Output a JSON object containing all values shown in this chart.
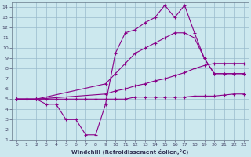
{
  "xlabel": "Windchill (Refroidissement éolien,°C)",
  "background_color": "#cce8ee",
  "line_color": "#880088",
  "grid_color": "#99bbcc",
  "xlim": [
    -0.5,
    23.5
  ],
  "ylim": [
    1,
    14.5
  ],
  "xticks": [
    0,
    1,
    2,
    3,
    4,
    5,
    6,
    7,
    8,
    9,
    10,
    11,
    12,
    13,
    14,
    15,
    16,
    17,
    18,
    19,
    20,
    21,
    22,
    23
  ],
  "yticks": [
    1,
    2,
    3,
    4,
    5,
    6,
    7,
    8,
    9,
    10,
    11,
    12,
    13,
    14
  ],
  "line1_x": [
    0,
    1,
    2,
    3,
    4,
    5,
    6,
    7,
    8,
    9,
    10,
    11,
    12,
    13,
    14,
    15,
    16,
    17,
    18,
    19,
    20,
    21,
    22,
    23
  ],
  "line1_y": [
    5.0,
    5.0,
    5.0,
    5.0,
    5.0,
    5.0,
    5.0,
    5.0,
    5.0,
    5.0,
    5.0,
    5.0,
    5.2,
    5.2,
    5.2,
    5.2,
    5.2,
    5.2,
    5.3,
    5.3,
    5.3,
    5.4,
    5.5,
    5.5
  ],
  "line2_x": [
    0,
    2,
    9,
    10,
    11,
    12,
    13,
    14,
    15,
    16,
    17,
    18,
    19,
    20,
    21,
    22,
    23
  ],
  "line2_y": [
    5.0,
    5.0,
    5.5,
    5.8,
    6.0,
    6.3,
    6.5,
    6.8,
    7.0,
    7.3,
    7.6,
    8.0,
    8.3,
    8.5,
    8.5,
    8.5,
    8.5
  ],
  "line3_x": [
    0,
    2,
    9,
    10,
    11,
    12,
    13,
    14,
    15,
    16,
    17,
    18,
    19,
    20,
    21,
    22,
    23
  ],
  "line3_y": [
    5.0,
    5.0,
    6.5,
    7.5,
    8.5,
    9.5,
    10.0,
    10.5,
    11.0,
    11.5,
    11.5,
    11.0,
    9.0,
    7.5,
    7.5,
    7.5,
    7.5
  ],
  "line4_x": [
    0,
    1,
    2,
    3,
    4,
    5,
    6,
    7,
    8,
    9,
    10,
    11,
    12,
    13,
    14,
    15,
    16,
    17,
    18,
    19,
    20,
    21,
    22,
    23
  ],
  "line4_y": [
    5.0,
    5.0,
    5.0,
    4.5,
    4.5,
    3.0,
    3.0,
    1.5,
    1.5,
    4.5,
    9.5,
    11.5,
    11.8,
    12.5,
    13.0,
    14.2,
    13.0,
    14.2,
    11.5,
    9.0,
    7.5,
    7.5,
    7.5,
    7.5
  ]
}
